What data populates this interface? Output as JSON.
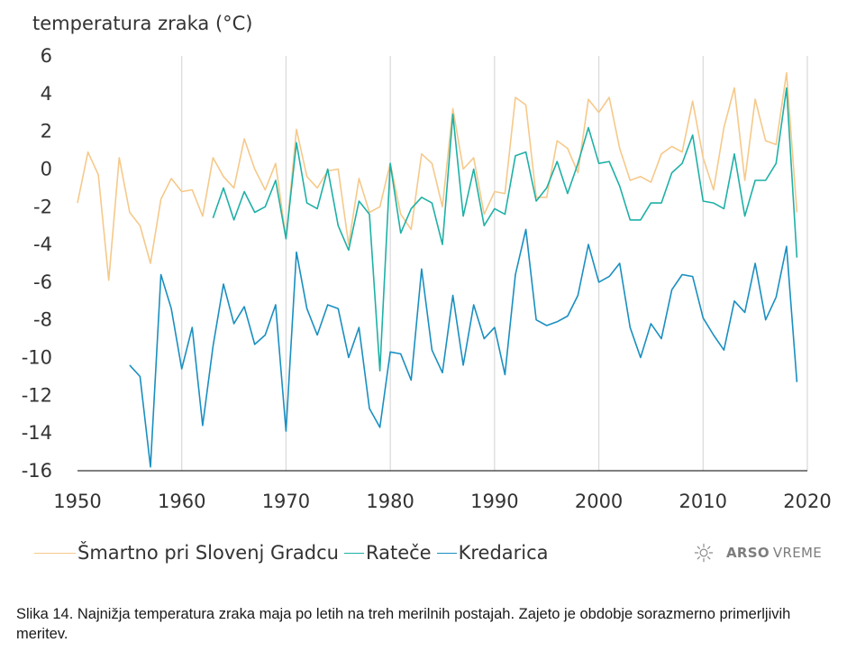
{
  "chart_data": {
    "type": "line",
    "ylabel": "temperatura zraka (°C)",
    "xlim": [
      1950,
      2020
    ],
    "ylim": [
      -16,
      6
    ],
    "xticks": [
      1950,
      1960,
      1970,
      1980,
      1990,
      2000,
      2010,
      2020
    ],
    "yticks": [
      6,
      4,
      2,
      0,
      -2,
      -4,
      -6,
      -8,
      -10,
      -12,
      -14,
      -16
    ],
    "grid": "vertical",
    "legend_position": "bottom",
    "series": [
      {
        "name": "Šmartno pri Slovenj Gradcu",
        "color": "#f5c98a",
        "x": [
          1950,
          1951,
          1952,
          1953,
          1954,
          1955,
          1956,
          1957,
          1958,
          1959,
          1960,
          1961,
          1962,
          1963,
          1964,
          1965,
          1966,
          1967,
          1968,
          1969,
          1970,
          1971,
          1972,
          1973,
          1974,
          1975,
          1976,
          1977,
          1978,
          1979,
          1980,
          1981,
          1982,
          1983,
          1984,
          1985,
          1986,
          1987,
          1988,
          1989,
          1990,
          1991,
          1992,
          1993,
          1994,
          1995,
          1996,
          1997,
          1998,
          1999,
          2000,
          2001,
          2002,
          2003,
          2004,
          2005,
          2006,
          2007,
          2008,
          2009,
          2010,
          2011,
          2012,
          2013,
          2014,
          2015,
          2016,
          2017,
          2018,
          2019
        ],
        "values": [
          -1.8,
          0.9,
          -0.3,
          -5.9,
          0.6,
          -2.3,
          -3.0,
          -5.0,
          -1.6,
          -0.5,
          -1.2,
          -1.1,
          -2.5,
          0.6,
          -0.4,
          -1.0,
          1.6,
          0.0,
          -1.1,
          0.3,
          -3.7,
          2.1,
          -0.4,
          -1.0,
          -0.1,
          0.0,
          -4.0,
          -0.5,
          -2.3,
          -2.0,
          0.3,
          -2.4,
          -3.2,
          0.8,
          0.3,
          -2.0,
          3.2,
          0.0,
          0.6,
          -2.4,
          -1.2,
          -1.3,
          3.8,
          3.4,
          -1.5,
          -1.5,
          1.5,
          1.1,
          -0.2,
          3.7,
          3.0,
          3.8,
          1.1,
          -0.6,
          -0.4,
          -0.7,
          0.8,
          1.2,
          0.9,
          3.6,
          0.6,
          -1.1,
          2.2,
          4.3,
          -0.6,
          3.7,
          1.5,
          1.3,
          5.1,
          -2.3
        ]
      },
      {
        "name": "Rateče",
        "color": "#1fb0a6",
        "x": [
          1963,
          1964,
          1965,
          1966,
          1967,
          1968,
          1969,
          1970,
          1971,
          1972,
          1973,
          1974,
          1975,
          1976,
          1977,
          1978,
          1979,
          1980,
          1981,
          1982,
          1983,
          1984,
          1985,
          1986,
          1987,
          1988,
          1989,
          1990,
          1991,
          1992,
          1993,
          1994,
          1995,
          1996,
          1997,
          1998,
          1999,
          2000,
          2001,
          2002,
          2003,
          2004,
          2005,
          2006,
          2007,
          2008,
          2009,
          2010,
          2011,
          2012,
          2013,
          2014,
          2015,
          2016,
          2017,
          2018,
          2019
        ],
        "values": [
          -2.6,
          -1.0,
          -2.7,
          -1.2,
          -2.3,
          -2.0,
          -0.6,
          -3.7,
          1.4,
          -1.8,
          -2.1,
          0.0,
          -3.0,
          -4.3,
          -1.7,
          -2.4,
          -10.7,
          0.3,
          -3.4,
          -2.1,
          -1.5,
          -1.8,
          -4.0,
          2.9,
          -2.5,
          0.0,
          -3.0,
          -2.1,
          -2.4,
          0.7,
          0.9,
          -1.7,
          -1.0,
          0.4,
          -1.3,
          0.3,
          2.2,
          0.3,
          0.4,
          -0.9,
          -2.7,
          -2.7,
          -1.8,
          -1.8,
          -0.2,
          0.3,
          1.8,
          -1.7,
          -1.8,
          -2.1,
          0.8,
          -2.5,
          -0.6,
          -0.6,
          0.3,
          4.3,
          -4.7
        ]
      },
      {
        "name": "Kredarica",
        "color": "#1a8fc0",
        "x": [
          1955,
          1956,
          1957,
          1958,
          1959,
          1960,
          1961,
          1962,
          1963,
          1964,
          1965,
          1966,
          1967,
          1968,
          1969,
          1970,
          1971,
          1972,
          1973,
          1974,
          1975,
          1976,
          1977,
          1978,
          1979,
          1980,
          1981,
          1982,
          1983,
          1984,
          1985,
          1986,
          1987,
          1988,
          1989,
          1990,
          1991,
          1992,
          1993,
          1994,
          1995,
          1996,
          1997,
          1998,
          1999,
          2000,
          2001,
          2002,
          2003,
          2004,
          2005,
          2006,
          2007,
          2008,
          2009,
          2010,
          2011,
          2012,
          2013,
          2014,
          2015,
          2016,
          2017,
          2018,
          2019
        ],
        "values": [
          -10.4,
          -11.0,
          -15.8,
          -5.6,
          -7.4,
          -10.6,
          -8.4,
          -13.6,
          -9.4,
          -6.1,
          -8.2,
          -7.3,
          -9.3,
          -8.8,
          -7.2,
          -13.9,
          -4.4,
          -7.4,
          -8.8,
          -7.2,
          -7.4,
          -10.0,
          -8.4,
          -12.7,
          -13.7,
          -9.7,
          -9.8,
          -11.2,
          -5.3,
          -9.6,
          -10.8,
          -6.7,
          -10.4,
          -7.2,
          -9.0,
          -8.4,
          -10.9,
          -5.6,
          -3.2,
          -8.0,
          -8.3,
          -8.1,
          -7.8,
          -6.7,
          -4.0,
          -6.0,
          -5.7,
          -5.0,
          -8.4,
          -10.0,
          -8.2,
          -9.0,
          -6.4,
          -5.6,
          -5.7,
          -7.9,
          -8.8,
          -9.6,
          -7.0,
          -7.6,
          -5.0,
          -8.0,
          -6.8,
          -4.1,
          -11.3
        ]
      }
    ]
  },
  "branding": {
    "logo_icon": "sun-icon",
    "name_strong": "ARSO",
    "name_light": "VREME"
  },
  "caption": {
    "text": "Slika 14. Najnižja temperatura zraka maja po letih na treh merilnih postajah. Zajeto je obdobje sorazmerno primerljivih meritev."
  }
}
